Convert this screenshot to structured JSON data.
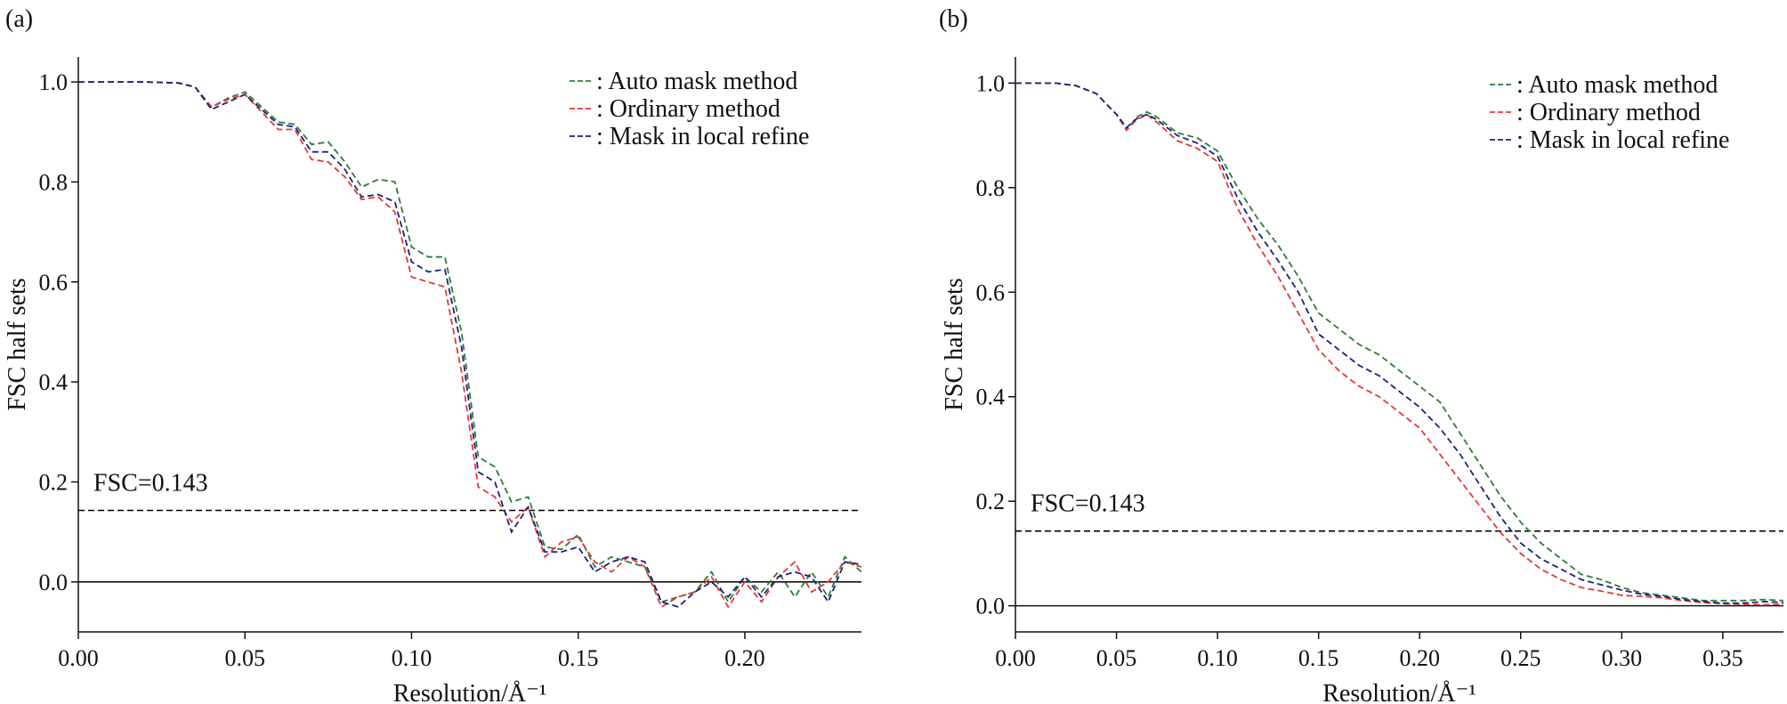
{
  "chart_data": [
    {
      "type": "line",
      "panel": "(a)",
      "xlabel": "Resolution/Å⁻¹",
      "ylabel": "FSC half sets",
      "xlim": [
        0,
        0.235
      ],
      "ylim": [
        -0.1,
        1.05
      ],
      "xticks": [
        "0.00",
        "0.05",
        "0.10",
        "0.15",
        "0.20"
      ],
      "yticks": [
        "0.0",
        "0.2",
        "0.4",
        "0.6",
        "0.8",
        "1.0"
      ],
      "grid": false,
      "legend_position": "top-right",
      "threshold": {
        "value": 0.143,
        "label": "FSC=0.143",
        "style": "dashed",
        "color": "#000000"
      },
      "zero_line": 0,
      "series": [
        {
          "name": ": Auto mask method",
          "color": "#2e7d32",
          "x": [
            0.0,
            0.01,
            0.02,
            0.03,
            0.035,
            0.04,
            0.045,
            0.05,
            0.055,
            0.06,
            0.065,
            0.07,
            0.075,
            0.08,
            0.085,
            0.09,
            0.095,
            0.1,
            0.105,
            0.11,
            0.115,
            0.12,
            0.125,
            0.13,
            0.135,
            0.14,
            0.145,
            0.15,
            0.155,
            0.16,
            0.165,
            0.17,
            0.175,
            0.18,
            0.185,
            0.19,
            0.195,
            0.2,
            0.205,
            0.21,
            0.215,
            0.22,
            0.225,
            0.23,
            0.235
          ],
          "y": [
            1.0,
            1.0,
            1.0,
            0.998,
            0.99,
            0.95,
            0.968,
            0.98,
            0.95,
            0.92,
            0.915,
            0.875,
            0.88,
            0.84,
            0.79,
            0.805,
            0.8,
            0.67,
            0.65,
            0.65,
            0.5,
            0.25,
            0.23,
            0.16,
            0.17,
            0.07,
            0.065,
            0.095,
            0.03,
            0.05,
            0.04,
            0.03,
            -0.04,
            -0.03,
            -0.02,
            0.02,
            -0.04,
            0.01,
            -0.02,
            0.02,
            -0.03,
            0.02,
            -0.03,
            0.05,
            0.02
          ]
        },
        {
          "name": ": Ordinary method",
          "color": "#e53935",
          "x": [
            0.0,
            0.01,
            0.02,
            0.03,
            0.035,
            0.04,
            0.045,
            0.05,
            0.055,
            0.06,
            0.065,
            0.07,
            0.075,
            0.08,
            0.085,
            0.09,
            0.095,
            0.1,
            0.105,
            0.11,
            0.115,
            0.12,
            0.125,
            0.13,
            0.135,
            0.14,
            0.145,
            0.15,
            0.155,
            0.16,
            0.165,
            0.17,
            0.175,
            0.18,
            0.185,
            0.19,
            0.195,
            0.2,
            0.205,
            0.21,
            0.215,
            0.22,
            0.225,
            0.23,
            0.235
          ],
          "y": [
            1.0,
            1.0,
            1.0,
            0.998,
            0.99,
            0.95,
            0.965,
            0.975,
            0.94,
            0.905,
            0.905,
            0.845,
            0.84,
            0.81,
            0.765,
            0.77,
            0.74,
            0.61,
            0.6,
            0.59,
            0.42,
            0.19,
            0.17,
            0.12,
            0.15,
            0.05,
            0.08,
            0.09,
            0.04,
            0.02,
            0.05,
            0.03,
            -0.05,
            -0.03,
            -0.02,
            0.01,
            -0.05,
            0.0,
            -0.04,
            0.01,
            0.04,
            -0.02,
            0.0,
            0.04,
            0.03
          ]
        },
        {
          "name": ": Mask in local refine",
          "color": "#1a237e",
          "x": [
            0.0,
            0.01,
            0.02,
            0.03,
            0.035,
            0.04,
            0.045,
            0.05,
            0.055,
            0.06,
            0.065,
            0.07,
            0.075,
            0.08,
            0.085,
            0.09,
            0.095,
            0.1,
            0.105,
            0.11,
            0.115,
            0.12,
            0.125,
            0.13,
            0.135,
            0.14,
            0.145,
            0.15,
            0.155,
            0.16,
            0.165,
            0.17,
            0.175,
            0.18,
            0.185,
            0.19,
            0.195,
            0.2,
            0.205,
            0.21,
            0.215,
            0.22,
            0.225,
            0.23,
            0.235
          ],
          "y": [
            1.0,
            1.0,
            1.0,
            0.998,
            0.99,
            0.945,
            0.96,
            0.975,
            0.945,
            0.915,
            0.91,
            0.86,
            0.86,
            0.825,
            0.77,
            0.775,
            0.76,
            0.64,
            0.62,
            0.625,
            0.47,
            0.22,
            0.2,
            0.1,
            0.15,
            0.06,
            0.06,
            0.07,
            0.02,
            0.04,
            0.05,
            0.04,
            -0.04,
            -0.05,
            -0.02,
            0.0,
            -0.03,
            0.01,
            -0.03,
            0.01,
            0.02,
            0.01,
            -0.04,
            0.04,
            0.035
          ]
        }
      ]
    },
    {
      "type": "line",
      "panel": "(b)",
      "xlabel": "Resolution/Å⁻¹",
      "ylabel": "FSC half sets",
      "xlim": [
        0,
        0.38
      ],
      "ylim": [
        -0.05,
        1.05
      ],
      "xticks": [
        "0.00",
        "0.05",
        "0.10",
        "0.15",
        "0.20",
        "0.25",
        "0.30",
        "0.35"
      ],
      "yticks": [
        "0.0",
        "0.2",
        "0.4",
        "0.6",
        "0.8",
        "1.0"
      ],
      "grid": false,
      "legend_position": "top-right",
      "threshold": {
        "value": 0.143,
        "label": "FSC=0.143",
        "style": "dashed",
        "color": "#000000"
      },
      "zero_line": 0,
      "series": [
        {
          "name": ": Auto mask method",
          "color": "#2e7d32",
          "x": [
            0.0,
            0.02,
            0.03,
            0.04,
            0.05,
            0.055,
            0.06,
            0.065,
            0.07,
            0.08,
            0.09,
            0.1,
            0.11,
            0.12,
            0.13,
            0.14,
            0.15,
            0.16,
            0.17,
            0.18,
            0.19,
            0.2,
            0.21,
            0.22,
            0.23,
            0.24,
            0.25,
            0.26,
            0.27,
            0.28,
            0.29,
            0.3,
            0.31,
            0.32,
            0.33,
            0.34,
            0.35,
            0.36,
            0.37,
            0.38
          ],
          "y": [
            1.0,
            1.0,
            0.995,
            0.98,
            0.94,
            0.91,
            0.935,
            0.945,
            0.935,
            0.905,
            0.895,
            0.87,
            0.8,
            0.74,
            0.69,
            0.63,
            0.56,
            0.53,
            0.5,
            0.48,
            0.45,
            0.42,
            0.39,
            0.33,
            0.27,
            0.21,
            0.16,
            0.12,
            0.09,
            0.06,
            0.05,
            0.035,
            0.025,
            0.02,
            0.015,
            0.01,
            0.01,
            0.01,
            0.012,
            0.01
          ]
        },
        {
          "name": ": Ordinary method",
          "color": "#e53935",
          "x": [
            0.0,
            0.02,
            0.03,
            0.04,
            0.05,
            0.055,
            0.06,
            0.065,
            0.07,
            0.08,
            0.09,
            0.1,
            0.11,
            0.12,
            0.13,
            0.14,
            0.15,
            0.16,
            0.17,
            0.18,
            0.19,
            0.2,
            0.21,
            0.22,
            0.23,
            0.24,
            0.25,
            0.26,
            0.27,
            0.28,
            0.29,
            0.3,
            0.31,
            0.32,
            0.33,
            0.34,
            0.35,
            0.36,
            0.37,
            0.38
          ],
          "y": [
            1.0,
            1.0,
            0.995,
            0.98,
            0.94,
            0.91,
            0.93,
            0.94,
            0.925,
            0.89,
            0.875,
            0.85,
            0.76,
            0.69,
            0.63,
            0.56,
            0.49,
            0.45,
            0.42,
            0.4,
            0.37,
            0.34,
            0.29,
            0.24,
            0.19,
            0.14,
            0.1,
            0.07,
            0.05,
            0.035,
            0.028,
            0.02,
            0.018,
            0.015,
            0.01,
            0.006,
            0.004,
            0.003,
            0.002,
            0.003
          ]
        },
        {
          "name": ": Mask in local refine",
          "color": "#1a237e",
          "x": [
            0.0,
            0.02,
            0.03,
            0.04,
            0.05,
            0.055,
            0.06,
            0.065,
            0.07,
            0.08,
            0.09,
            0.1,
            0.11,
            0.12,
            0.13,
            0.14,
            0.15,
            0.16,
            0.17,
            0.18,
            0.19,
            0.2,
            0.21,
            0.22,
            0.23,
            0.24,
            0.25,
            0.26,
            0.27,
            0.28,
            0.29,
            0.3,
            0.31,
            0.32,
            0.33,
            0.34,
            0.35,
            0.36,
            0.37,
            0.38
          ],
          "y": [
            1.0,
            1.0,
            0.995,
            0.98,
            0.94,
            0.915,
            0.932,
            0.94,
            0.93,
            0.9,
            0.885,
            0.86,
            0.78,
            0.715,
            0.66,
            0.6,
            0.52,
            0.49,
            0.46,
            0.44,
            0.41,
            0.38,
            0.34,
            0.29,
            0.23,
            0.17,
            0.12,
            0.09,
            0.07,
            0.05,
            0.04,
            0.03,
            0.022,
            0.018,
            0.012,
            0.008,
            0.005,
            0.005,
            0.008,
            0.006
          ]
        }
      ]
    }
  ]
}
